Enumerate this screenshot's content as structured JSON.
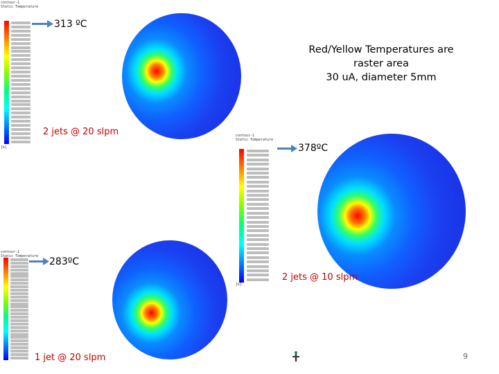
{
  "callouts": {
    "top": "313 ºC",
    "right": "378ºC",
    "bottom": "283ºC"
  },
  "configs": {
    "top": "2 jets @ 20 slpm",
    "right": "2 jets @ 10 slpm",
    "bottom": "1 jet @ 20 slpm"
  },
  "note": {
    "line1": "Red/Yellow Temperatures are",
    "line2": "raster area",
    "line3": "30 uA, diameter 5mm"
  },
  "legend_header": {
    "line1": "contour-1",
    "line2": "Static Temperature"
  },
  "legend_unit": "[k]",
  "page_number": "9",
  "colors": {
    "callout_arrow": "#4f81bd",
    "config_text": "#c00000"
  }
}
